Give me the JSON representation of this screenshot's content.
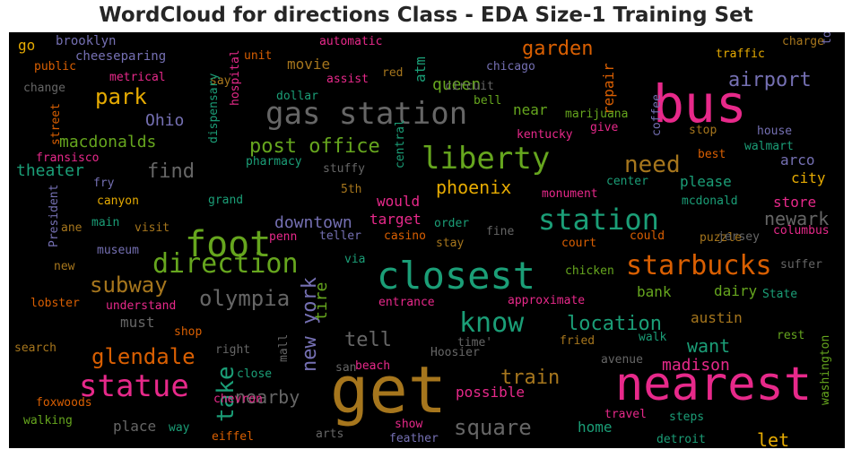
{
  "chart_data": {
    "type": "wordcloud",
    "title": "WordCloud for directions Class - EDA Size-1 Training Set",
    "background": "#000000",
    "palette": "Dark2",
    "words": [
      {
        "text": "get",
        "color": "#a6761d"
      },
      {
        "text": "nearest",
        "color": "#e7298a"
      },
      {
        "text": "bus",
        "color": "#e7298a"
      },
      {
        "text": "closest",
        "color": "#1b9e77"
      },
      {
        "text": "foot",
        "color": "#66a61e"
      },
      {
        "text": "gas station",
        "color": "#666666"
      },
      {
        "text": "liberty",
        "color": "#66a61e"
      },
      {
        "text": "station",
        "color": "#1b9e77"
      },
      {
        "text": "direction",
        "color": "#66a61e"
      },
      {
        "text": "statue",
        "color": "#e7298a"
      },
      {
        "text": "starbucks",
        "color": "#d95f02"
      },
      {
        "text": "know",
        "color": "#1b9e77"
      },
      {
        "text": "take",
        "color": "#1b9e77"
      },
      {
        "text": "olympia",
        "color": "#666666"
      },
      {
        "text": "square",
        "color": "#666666"
      },
      {
        "text": "need",
        "color": "#a6761d"
      },
      {
        "text": "park",
        "color": "#e6ab02"
      },
      {
        "text": "subway",
        "color": "#a6761d"
      },
      {
        "text": "glendale",
        "color": "#d95f02"
      },
      {
        "text": "post office",
        "color": "#66a61e"
      },
      {
        "text": "new york",
        "color": "#7570b3"
      },
      {
        "text": "location",
        "color": "#1b9e77"
      },
      {
        "text": "train",
        "color": "#a6761d"
      },
      {
        "text": "tell",
        "color": "#666666"
      },
      {
        "text": "airport",
        "color": "#7570b3"
      },
      {
        "text": "garden",
        "color": "#d95f02"
      },
      {
        "text": "phoenix",
        "color": "#e6ab02"
      },
      {
        "text": "find",
        "color": "#666666"
      },
      {
        "text": "nearby",
        "color": "#666666"
      },
      {
        "text": "madison",
        "color": "#e7298a"
      },
      {
        "text": "want",
        "color": "#1b9e77"
      },
      {
        "text": "newark",
        "color": "#666666"
      },
      {
        "text": "downtown",
        "color": "#7570b3"
      },
      {
        "text": "macdonalds",
        "color": "#66a61e"
      },
      {
        "text": "let",
        "color": "#e6ab02"
      },
      {
        "text": "theater",
        "color": "#1b9e77"
      },
      {
        "text": "tire",
        "color": "#66a61e"
      },
      {
        "text": "Ohio",
        "color": "#7570b3"
      },
      {
        "text": "queen",
        "color": "#66a61e"
      },
      {
        "text": "austin",
        "color": "#a6761d"
      },
      {
        "text": "target",
        "color": "#e7298a"
      },
      {
        "text": "would",
        "color": "#e7298a"
      },
      {
        "text": "city",
        "color": "#e6ab02"
      },
      {
        "text": "arco",
        "color": "#7570b3"
      },
      {
        "text": "please",
        "color": "#1b9e77"
      },
      {
        "text": "home",
        "color": "#1b9e77"
      },
      {
        "text": "possible",
        "color": "#e7298a"
      },
      {
        "text": "place",
        "color": "#666666"
      },
      {
        "text": "movie",
        "color": "#a6761d"
      },
      {
        "text": "bank",
        "color": "#66a61e"
      },
      {
        "text": "dairy",
        "color": "#66a61e"
      },
      {
        "text": "store",
        "color": "#e7298a"
      },
      {
        "text": "near",
        "color": "#66a61e"
      },
      {
        "text": "repair",
        "color": "#d95f02"
      },
      {
        "text": "atm",
        "color": "#1b9e77"
      },
      {
        "text": "must",
        "color": "#666666"
      },
      {
        "text": "go",
        "color": "#e6ab02"
      },
      {
        "text": "brooklyn",
        "color": "#7570b3"
      },
      {
        "text": "cheeseparing",
        "color": "#7570b3"
      },
      {
        "text": "automatic",
        "color": "#e7298a"
      },
      {
        "text": "unit",
        "color": "#d95f02"
      },
      {
        "text": "traffic",
        "color": "#e6ab02"
      },
      {
        "text": "charge",
        "color": "#a6761d"
      },
      {
        "text": "public",
        "color": "#d95f02"
      },
      {
        "text": "metrical",
        "color": "#e7298a"
      },
      {
        "text": "say",
        "color": "#a6761d"
      },
      {
        "text": "red",
        "color": "#a6761d"
      },
      {
        "text": "assist",
        "color": "#e7298a"
      },
      {
        "text": "chicago",
        "color": "#7570b3"
      },
      {
        "text": "circuit",
        "color": "#666666"
      },
      {
        "text": "tower",
        "color": "#7570b3"
      },
      {
        "text": "change",
        "color": "#666666"
      },
      {
        "text": "dollar",
        "color": "#1b9e77"
      },
      {
        "text": "bell",
        "color": "#66a61e"
      },
      {
        "text": "street",
        "color": "#d95f02"
      },
      {
        "text": "hospital",
        "color": "#e7298a"
      },
      {
        "text": "dispensary",
        "color": "#1b9e77"
      },
      {
        "text": "marijuana",
        "color": "#66a61e"
      },
      {
        "text": "coffee",
        "color": "#7570b3"
      },
      {
        "text": "give",
        "color": "#e7298a"
      },
      {
        "text": "kentucky",
        "color": "#e7298a"
      },
      {
        "text": "stop",
        "color": "#a6761d"
      },
      {
        "text": "house",
        "color": "#7570b3"
      },
      {
        "text": "walmart",
        "color": "#1b9e77"
      },
      {
        "text": "best",
        "color": "#d95f02"
      },
      {
        "text": "fransisco",
        "color": "#e7298a"
      },
      {
        "text": "pharmacy",
        "color": "#1b9e77"
      },
      {
        "text": "central",
        "color": "#1b9e77"
      },
      {
        "text": "stuffy",
        "color": "#666666"
      },
      {
        "text": "fry",
        "color": "#7570b3"
      },
      {
        "text": "canyon",
        "color": "#e6ab02"
      },
      {
        "text": "5th",
        "color": "#a6761d"
      },
      {
        "text": "monument",
        "color": "#e7298a"
      },
      {
        "text": "center",
        "color": "#1b9e77"
      },
      {
        "text": "mcdonald",
        "color": "#1b9e77"
      },
      {
        "text": "President",
        "color": "#7570b3"
      },
      {
        "text": "grand",
        "color": "#1b9e77"
      },
      {
        "text": "ane",
        "color": "#a6761d"
      },
      {
        "text": "main",
        "color": "#1b9e77"
      },
      {
        "text": "visit",
        "color": "#a6761d"
      },
      {
        "text": "penn",
        "color": "#e7298a"
      },
      {
        "text": "teller",
        "color": "#7570b3"
      },
      {
        "text": "order",
        "color": "#1b9e77"
      },
      {
        "text": "casino",
        "color": "#d95f02"
      },
      {
        "text": "puzzle",
        "color": "#a6761d"
      },
      {
        "text": "columbus",
        "color": "#e7298a"
      },
      {
        "text": "jersey",
        "color": "#666666"
      },
      {
        "text": "could",
        "color": "#d95f02"
      },
      {
        "text": "court",
        "color": "#d95f02"
      },
      {
        "text": "fine",
        "color": "#666666"
      },
      {
        "text": "stay",
        "color": "#a6761d"
      },
      {
        "text": "museum",
        "color": "#7570b3"
      },
      {
        "text": "new",
        "color": "#a6761d"
      },
      {
        "text": "via",
        "color": "#1b9e77"
      },
      {
        "text": "chicken",
        "color": "#66a61e"
      },
      {
        "text": "suffer",
        "color": "#666666"
      },
      {
        "text": "State",
        "color": "#1b9e77"
      },
      {
        "text": "lobster",
        "color": "#d95f02"
      },
      {
        "text": "understand",
        "color": "#e7298a"
      },
      {
        "text": "entrance",
        "color": "#e7298a"
      },
      {
        "text": "approximate",
        "color": "#e7298a"
      },
      {
        "text": "shop",
        "color": "#d95f02"
      },
      {
        "text": "mall",
        "color": "#666666"
      },
      {
        "text": "time'",
        "color": "#666666"
      },
      {
        "text": "fried",
        "color": "#a6761d"
      },
      {
        "text": "walk",
        "color": "#1b9e77"
      },
      {
        "text": "rest",
        "color": "#66a61e"
      },
      {
        "text": "search",
        "color": "#a6761d"
      },
      {
        "text": "right",
        "color": "#666666"
      },
      {
        "text": "Hoosier",
        "color": "#666666"
      },
      {
        "text": "avenue",
        "color": "#666666"
      },
      {
        "text": "washington",
        "color": "#66a61e"
      },
      {
        "text": "close",
        "color": "#1b9e77"
      },
      {
        "text": "san",
        "color": "#666666"
      },
      {
        "text": "beach",
        "color": "#e7298a"
      },
      {
        "text": "chevron",
        "color": "#e7298a"
      },
      {
        "text": "foxwoods",
        "color": "#d95f02"
      },
      {
        "text": "travel",
        "color": "#e7298a"
      },
      {
        "text": "walking",
        "color": "#66a61e"
      },
      {
        "text": "way",
        "color": "#1b9e77"
      },
      {
        "text": "show",
        "color": "#e7298a"
      },
      {
        "text": "steps",
        "color": "#1b9e77"
      },
      {
        "text": "arts",
        "color": "#666666"
      },
      {
        "text": "eiffel",
        "color": "#d95f02"
      },
      {
        "text": "feather",
        "color": "#7570b3"
      },
      {
        "text": "detroit",
        "color": "#1b9e77"
      }
    ]
  }
}
